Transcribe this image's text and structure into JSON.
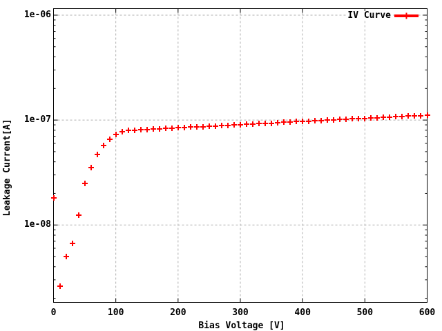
{
  "colors": {
    "series": "#ff0000",
    "grid": "#b0b0b0",
    "border": "#000000",
    "background": "#ffffff",
    "text": "#000000"
  },
  "chart_data": {
    "type": "scatter",
    "title": "",
    "xlabel": "Bias Voltage [V]",
    "ylabel": "Leakage Current[A]",
    "x_scale": "linear",
    "y_scale": "log",
    "xlim": [
      0,
      600
    ],
    "ylim": [
      1.829e-09,
      1.154e-06
    ],
    "grid": true,
    "legend_position": "top-right",
    "x_ticks": [
      {
        "value": 0,
        "label": "0"
      },
      {
        "value": 100,
        "label": "100"
      },
      {
        "value": 200,
        "label": "200"
      },
      {
        "value": 300,
        "label": "300"
      },
      {
        "value": 400,
        "label": "400"
      },
      {
        "value": 500,
        "label": "500"
      },
      {
        "value": 600,
        "label": "600"
      }
    ],
    "y_ticks": [
      {
        "value": 1e-06,
        "label": "1e-06"
      },
      {
        "value": 1e-07,
        "label": "1e-07"
      },
      {
        "value": 1e-08,
        "label": "1e-08"
      }
    ],
    "series": [
      {
        "name": "IV Curve",
        "color": "#ff0000",
        "marker": "plus",
        "points": [
          [
            0,
            1.8e-08
          ],
          [
            10,
            2.6e-09
          ],
          [
            20,
            5e-09
          ],
          [
            30,
            6.7e-09
          ],
          [
            40,
            1.25e-08
          ],
          [
            50,
            2.5e-08
          ],
          [
            60,
            3.5e-08
          ],
          [
            70,
            4.7e-08
          ],
          [
            80,
            5.7e-08
          ],
          [
            90,
            6.6e-08
          ],
          [
            100,
            7.3e-08
          ],
          [
            110,
            7.7e-08
          ],
          [
            120,
            7.95e-08
          ],
          [
            130,
            8e-08
          ],
          [
            140,
            8.1e-08
          ],
          [
            150,
            8.15e-08
          ],
          [
            160,
            8.2e-08
          ],
          [
            170,
            8.25e-08
          ],
          [
            180,
            8.3e-08
          ],
          [
            190,
            8.4e-08
          ],
          [
            200,
            8.45e-08
          ],
          [
            210,
            8.5e-08
          ],
          [
            220,
            8.55e-08
          ],
          [
            230,
            8.6e-08
          ],
          [
            240,
            8.65e-08
          ],
          [
            250,
            8.75e-08
          ],
          [
            260,
            8.8e-08
          ],
          [
            270,
            8.85e-08
          ],
          [
            280,
            8.9e-08
          ],
          [
            290,
            9e-08
          ],
          [
            300,
            9.05e-08
          ],
          [
            310,
            9.1e-08
          ],
          [
            320,
            9.2e-08
          ],
          [
            330,
            9.25e-08
          ],
          [
            340,
            9.3e-08
          ],
          [
            350,
            9.35e-08
          ],
          [
            360,
            9.45e-08
          ],
          [
            370,
            9.5e-08
          ],
          [
            380,
            9.55e-08
          ],
          [
            390,
            9.65e-08
          ],
          [
            400,
            9.7e-08
          ],
          [
            410,
            9.75e-08
          ],
          [
            420,
            9.85e-08
          ],
          [
            430,
            9.9e-08
          ],
          [
            440,
            9.95e-08
          ],
          [
            450,
            1.005e-07
          ],
          [
            460,
            1.01e-07
          ],
          [
            470,
            1.02e-07
          ],
          [
            480,
            1.025e-07
          ],
          [
            490,
            1.035e-07
          ],
          [
            500,
            1.04e-07
          ],
          [
            510,
            1.045e-07
          ],
          [
            520,
            1.055e-07
          ],
          [
            530,
            1.06e-07
          ],
          [
            540,
            1.07e-07
          ],
          [
            550,
            1.075e-07
          ],
          [
            560,
            1.085e-07
          ],
          [
            570,
            1.09e-07
          ],
          [
            580,
            1.1e-07
          ],
          [
            590,
            1.105e-07
          ],
          [
            600,
            1.115e-07
          ]
        ]
      }
    ]
  }
}
